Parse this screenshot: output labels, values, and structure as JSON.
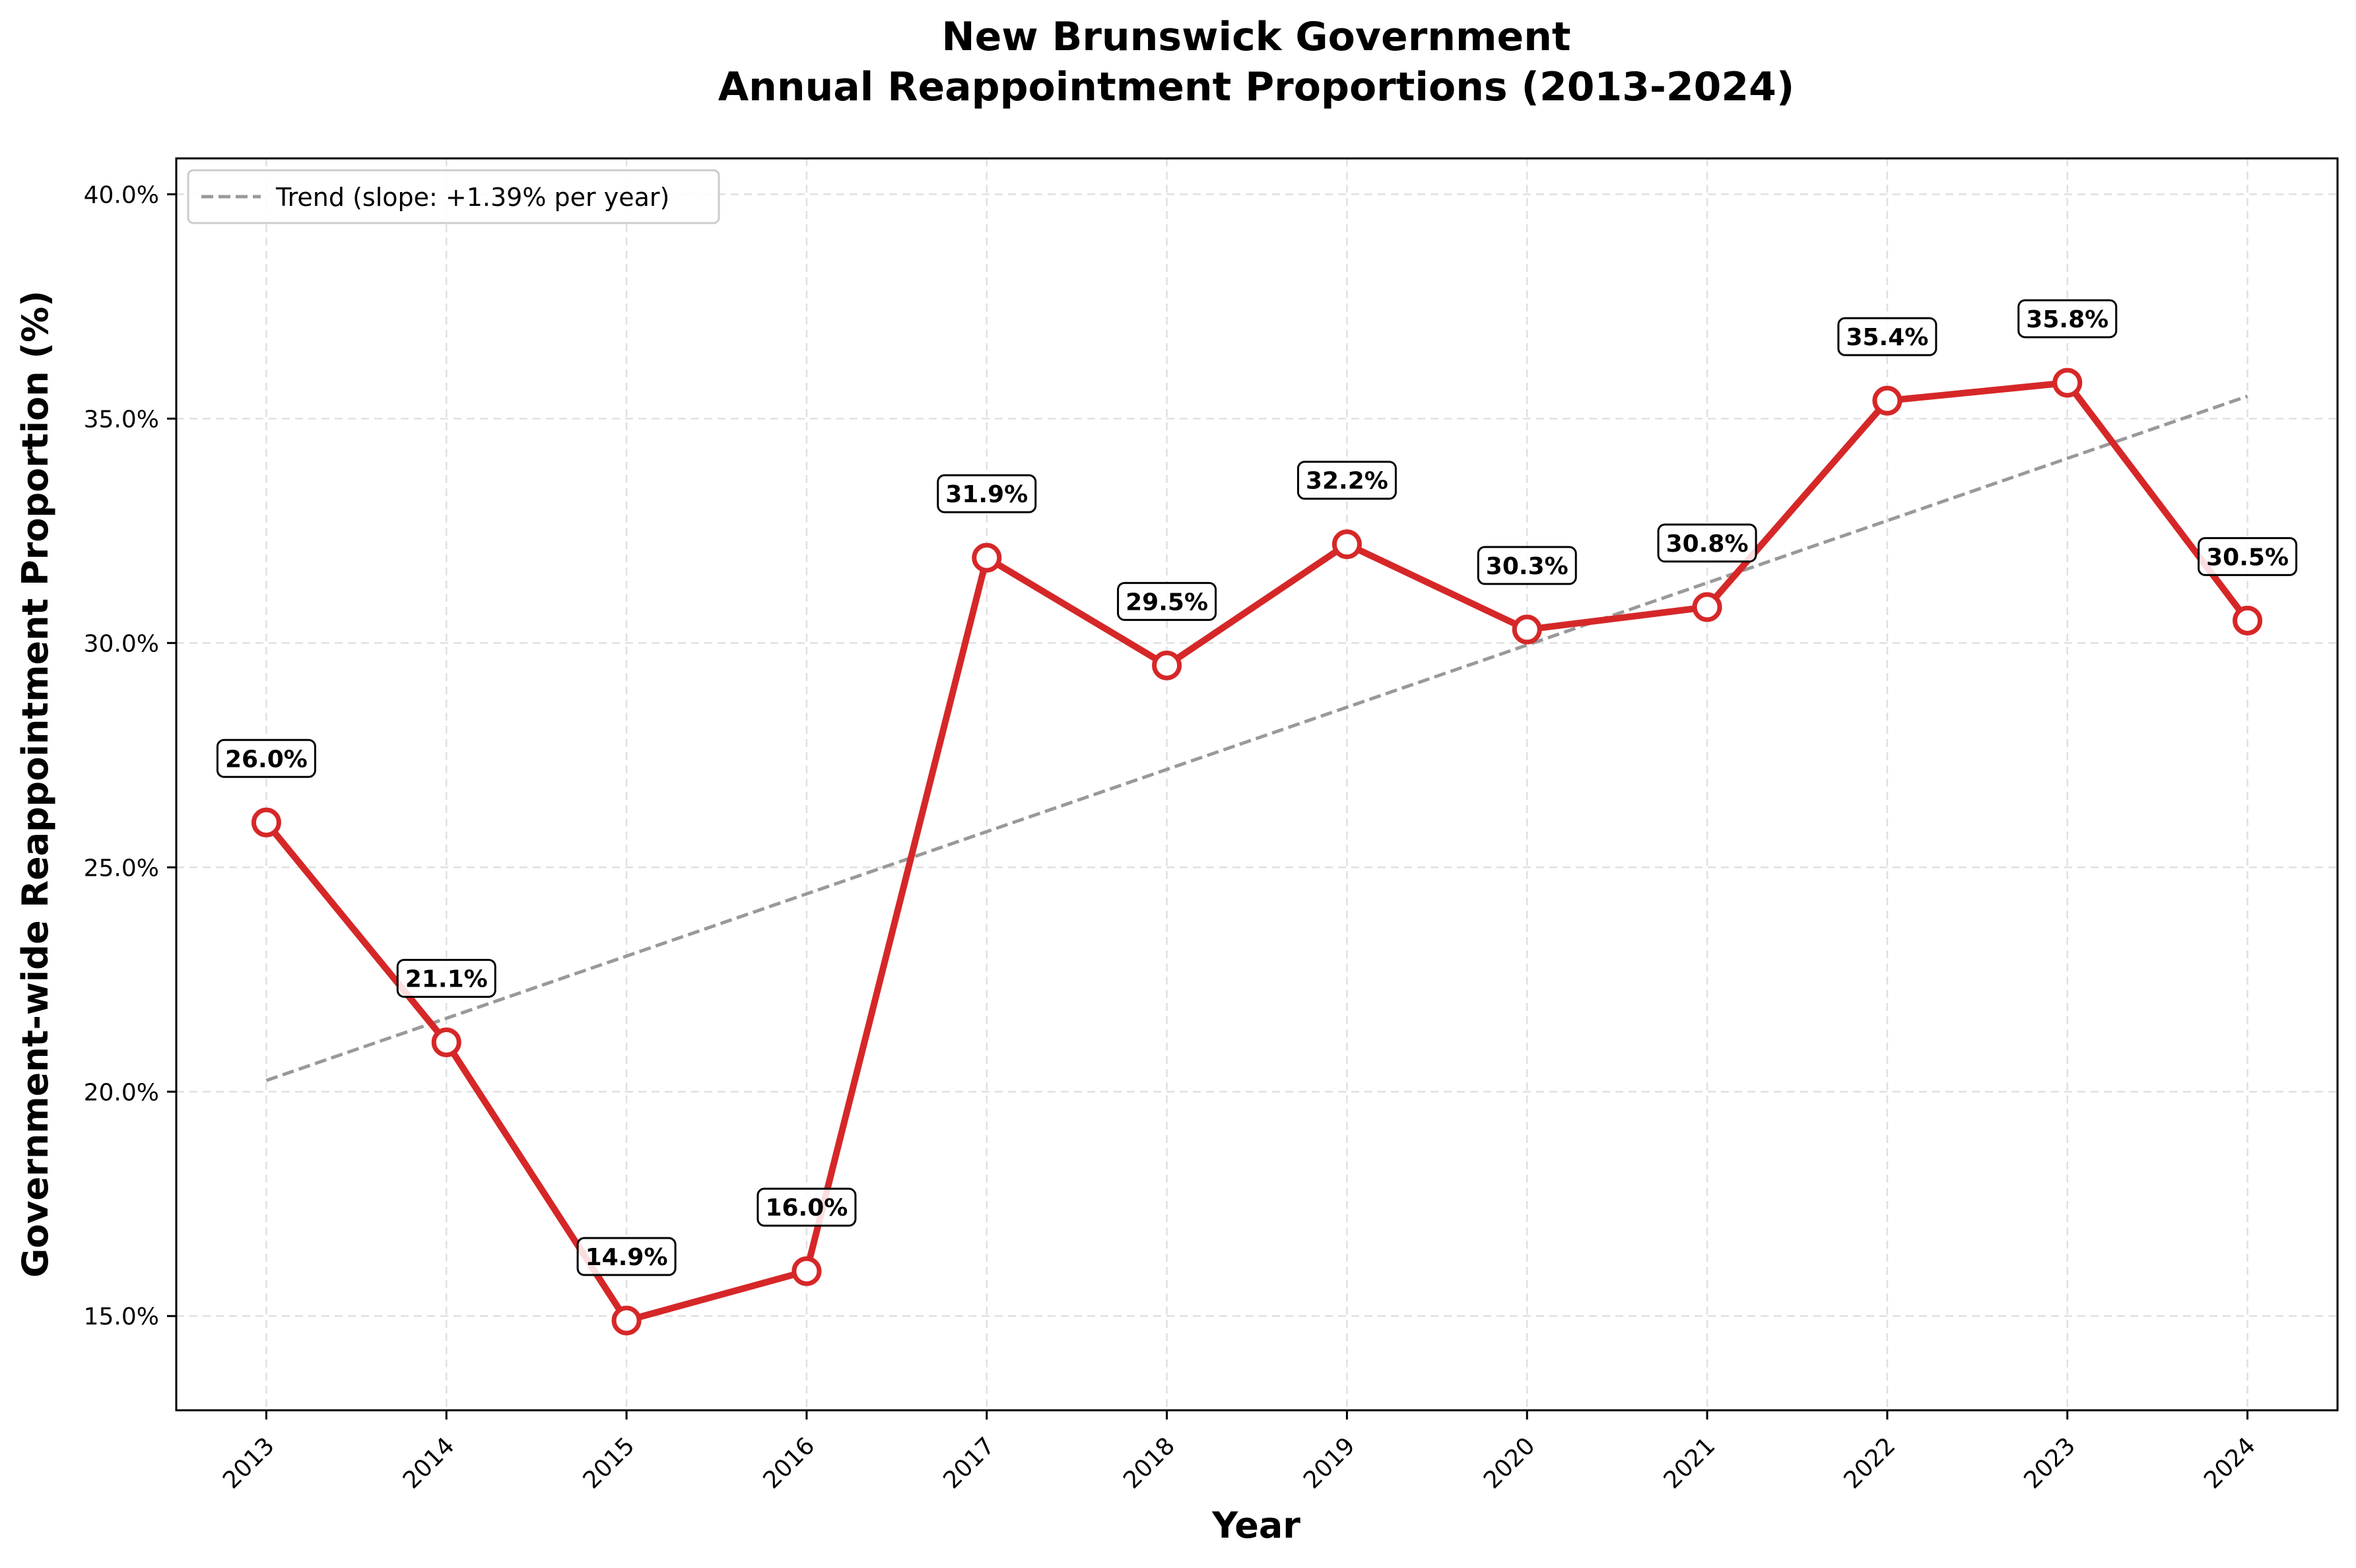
{
  "chart_data": {
    "type": "line",
    "title_line1": "New Brunswick Government",
    "title_line2": "Annual Reappointment Proportions (2013-2024)",
    "xlabel": "Year",
    "ylabel": "Government-wide Reappointment Proportion (%)",
    "x": [
      2013,
      2014,
      2015,
      2016,
      2017,
      2018,
      2019,
      2020,
      2021,
      2022,
      2023,
      2024
    ],
    "values": [
      26.0,
      21.1,
      14.9,
      16.0,
      31.9,
      29.5,
      32.2,
      30.3,
      30.8,
      35.4,
      35.8,
      30.5
    ],
    "point_labels": [
      "26.0%",
      "21.1%",
      "14.9%",
      "16.0%",
      "31.9%",
      "29.5%",
      "32.2%",
      "30.3%",
      "30.8%",
      "35.4%",
      "35.8%",
      "30.5%"
    ],
    "y_ticks": [
      15,
      20,
      25,
      30,
      35,
      40
    ],
    "y_tick_labels": [
      "15.0%",
      "20.0%",
      "25.0%",
      "30.0%",
      "35.0%",
      "40.0%"
    ],
    "ylim": [
      12.9,
      40.8
    ],
    "xlim": [
      2012.5,
      2024.5
    ],
    "trend": {
      "start": 20.25,
      "end": 35.5,
      "x_start": 2013,
      "x_end": 2024
    },
    "legend": {
      "label": "Trend (slope: +1.39% per year)",
      "location": "top-left"
    },
    "grid": true,
    "colors": {
      "line": "#d62728",
      "marker_fill": "#ffffff",
      "trend": "#999999",
      "grid": "#e0e0e0"
    }
  }
}
